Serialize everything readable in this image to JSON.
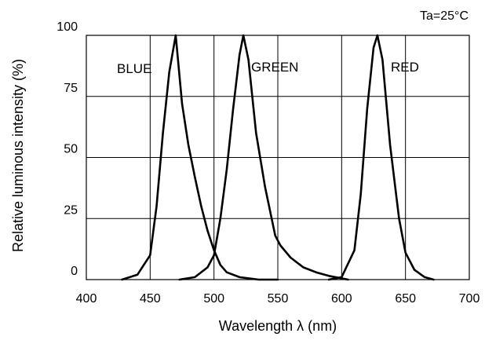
{
  "chart_data": {
    "type": "line",
    "annotation": "Ta=25°C",
    "xlabel": "Wavelength  λ (nm)",
    "ylabel": "Relative luminous intensity (%)",
    "xlim": [
      400,
      700
    ],
    "ylim": [
      0,
      100
    ],
    "x_ticks": [
      400,
      450,
      500,
      550,
      600,
      650,
      700
    ],
    "y_ticks": [
      0,
      25,
      50,
      75,
      100
    ],
    "grid": true,
    "series": [
      {
        "name": "BLUE",
        "points": [
          [
            428,
            0
          ],
          [
            440,
            2
          ],
          [
            450,
            10
          ],
          [
            455,
            30
          ],
          [
            460,
            60
          ],
          [
            465,
            85
          ],
          [
            470,
            100
          ],
          [
            475,
            72
          ],
          [
            480,
            55
          ],
          [
            485,
            42
          ],
          [
            490,
            30
          ],
          [
            495,
            20
          ],
          [
            500,
            12
          ],
          [
            505,
            6
          ],
          [
            510,
            3
          ],
          [
            520,
            1
          ],
          [
            535,
            0
          ],
          [
            550,
            0
          ]
        ]
      },
      {
        "name": "GREEN",
        "points": [
          [
            473,
            0
          ],
          [
            485,
            1
          ],
          [
            495,
            5
          ],
          [
            500,
            10
          ],
          [
            505,
            25
          ],
          [
            510,
            45
          ],
          [
            515,
            70
          ],
          [
            520,
            92
          ],
          [
            523,
            100
          ],
          [
            527,
            90
          ],
          [
            533,
            60
          ],
          [
            540,
            38
          ],
          [
            548,
            18
          ],
          [
            552,
            14
          ],
          [
            560,
            9
          ],
          [
            570,
            5
          ],
          [
            580,
            3
          ],
          [
            590,
            1.5
          ],
          [
            600,
            0.5
          ],
          [
            605,
            0
          ]
        ]
      },
      {
        "name": "RED",
        "points": [
          [
            590,
            0
          ],
          [
            600,
            1
          ],
          [
            610,
            12
          ],
          [
            615,
            35
          ],
          [
            620,
            70
          ],
          [
            625,
            95
          ],
          [
            628,
            100
          ],
          [
            632,
            90
          ],
          [
            638,
            55
          ],
          [
            645,
            25
          ],
          [
            650,
            11
          ],
          [
            657,
            4
          ],
          [
            665,
            1
          ],
          [
            672,
            0
          ]
        ]
      }
    ]
  }
}
